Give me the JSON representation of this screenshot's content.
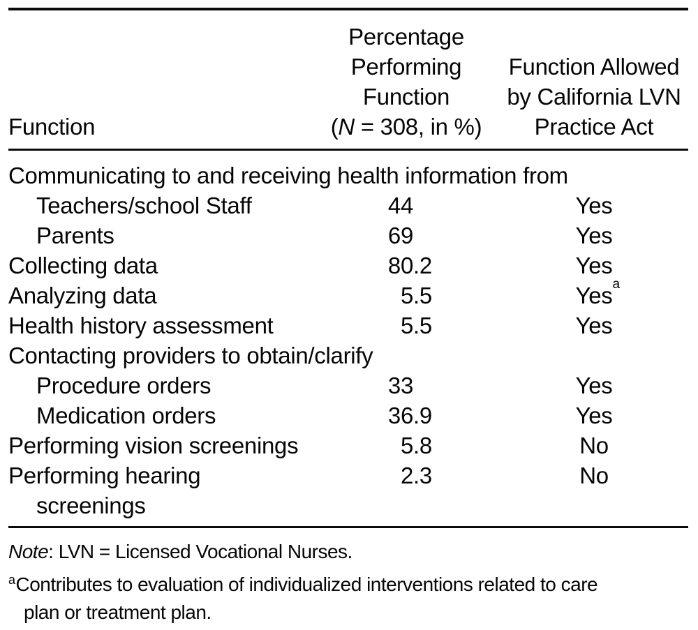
{
  "page": {
    "background_color": "#ffffff",
    "text_color": "#060606",
    "rule_color": "#0b0b0b"
  },
  "table": {
    "header": {
      "col1": "Function",
      "col2_lines": [
        "Percentage",
        "Performing",
        "Function"
      ],
      "col2_stat": {
        "open": "(",
        "symbol": "N",
        "rest": " = 308, in %)"
      },
      "col3_lines": [
        "Function Allowed",
        "by California LVN",
        "Practice Act"
      ]
    },
    "rows": [
      {
        "type": "section",
        "label": "Communicating to and receiving health information from"
      },
      {
        "type": "data",
        "indent": true,
        "label": "Teachers/school Staff",
        "value": "44",
        "allowed": "Yes"
      },
      {
        "type": "data",
        "indent": true,
        "label": "Parents",
        "value": "69",
        "allowed": "Yes"
      },
      {
        "type": "data",
        "indent": false,
        "label": "Collecting data",
        "value": "80.2",
        "allowed": "Yes"
      },
      {
        "type": "data",
        "indent": false,
        "label": "Analyzing data",
        "value": "5.5",
        "allowed": "Yes",
        "allowed_sup": "a"
      },
      {
        "type": "data",
        "indent": false,
        "label": "Health history assessment",
        "value": "5.5",
        "allowed": "Yes"
      },
      {
        "type": "section",
        "label": "Contacting providers to obtain/clarify"
      },
      {
        "type": "data",
        "indent": true,
        "label": "Procedure orders",
        "value": "33",
        "allowed": "Yes"
      },
      {
        "type": "data",
        "indent": true,
        "label": "Medication orders",
        "value": "36.9",
        "allowed": "Yes"
      },
      {
        "type": "data",
        "indent": false,
        "label": "Performing vision screenings",
        "value": "5.8",
        "allowed": "No"
      },
      {
        "type": "data",
        "indent": false,
        "label": "Performing hearing",
        "value": "2.3",
        "allowed": "No"
      },
      {
        "type": "continuation",
        "indent": true,
        "label": "screenings"
      }
    ]
  },
  "notes": {
    "note_label": "Note",
    "note_text": ": LVN = Licensed Vocational Nurses.",
    "footnote_marker": "a",
    "footnote_line1": "Contributes to evaluation of individualized interventions related to care",
    "footnote_line2": "plan or treatment plan."
  }
}
